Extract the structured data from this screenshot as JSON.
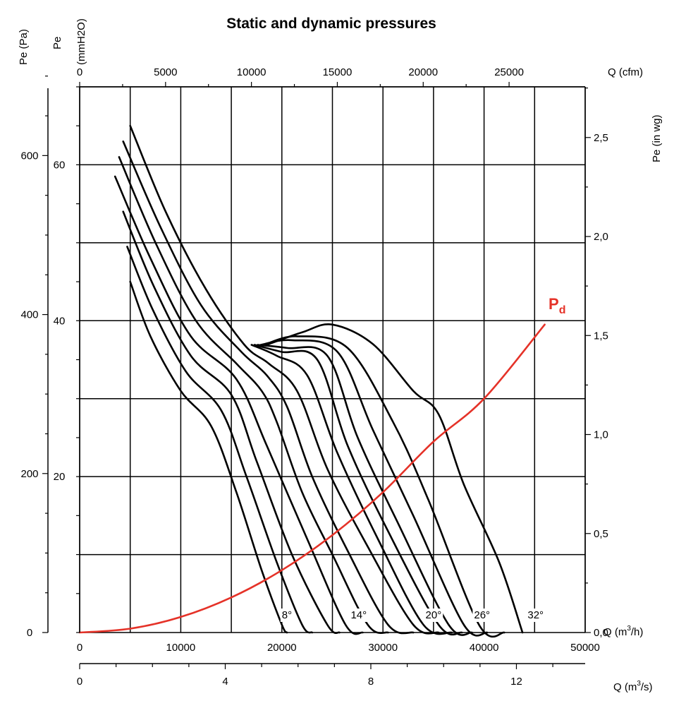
{
  "chart_data": {
    "type": "line",
    "title": "Static and dynamic pressures",
    "x_axis_bottom": {
      "label": "Q (m",
      "label_sup": "3",
      "label_end": "/h)",
      "range": [
        0,
        50000
      ],
      "ticks": [
        "0",
        "10000",
        "20000",
        "30000",
        "40000",
        "50000"
      ]
    },
    "x_axis_bottom2": {
      "label": "Q (m",
      "label_sup": "3",
      "label_end": "/s)",
      "ticks": [
        "0",
        "4",
        "8",
        "12"
      ],
      "tick_values": [
        0,
        4,
        8,
        12
      ]
    },
    "x_axis_top": {
      "label": "Q (cfm)",
      "ticks": [
        "0",
        "5000",
        "10000",
        "15000",
        "20000",
        "25000"
      ],
      "tick_values": [
        0,
        5000,
        10000,
        15000,
        20000,
        25000
      ]
    },
    "y_axis_pa": {
      "label": "Pe (Pa)",
      "ticks": [
        "0",
        "200",
        "400",
        "600"
      ],
      "tick_values": [
        0,
        200,
        400,
        600
      ]
    },
    "y_axis_mmh2o": {
      "label_line1": "Pe",
      "label_line2": "(mmH2O)",
      "range": [
        0,
        70
      ],
      "ticks": [
        "20",
        "40",
        "60"
      ],
      "tick_values": [
        20,
        40,
        60
      ]
    },
    "y_axis_inwg": {
      "label": "Pe (in wg)",
      "ticks": [
        "0,0",
        "0,5",
        "1,0",
        "1,5",
        "2,0",
        "2,5"
      ],
      "tick_values": [
        0,
        0.5,
        1.0,
        1.5,
        2.0,
        2.5
      ]
    },
    "grid": true,
    "series": [
      {
        "name": "8°",
        "x": [
          5000,
          7000,
          10000,
          13000,
          15500,
          18000,
          20000,
          20500
        ],
        "y": [
          45,
          38,
          31,
          26.5,
          18,
          8,
          1,
          0
        ]
      },
      {
        "name": "",
        "x": [
          4700,
          7200,
          10500,
          14000,
          16500,
          19500,
          22000,
          23000
        ],
        "y": [
          49.5,
          41.5,
          33.5,
          28.5,
          20,
          9,
          1,
          0
        ]
      },
      {
        "name": "",
        "x": [
          4300,
          7300,
          11000,
          15000,
          17500,
          21000,
          24500,
          25700
        ],
        "y": [
          54,
          44.5,
          35.5,
          30.5,
          22,
          10,
          1,
          0
        ]
      },
      {
        "name": "14°",
        "x": [
          3500,
          7000,
          11000,
          15500,
          18500,
          22500,
          26300,
          28000
        ],
        "y": [
          58.5,
          48,
          38,
          32.5,
          24,
          12,
          1,
          0
        ]
      },
      {
        "name": "",
        "x": [
          3900,
          7500,
          11500,
          15500,
          18000,
          19500,
          22000,
          25000,
          28500,
          30500
        ],
        "y": [
          61,
          50,
          40,
          34.5,
          31,
          27,
          18,
          10,
          1,
          0
        ]
      },
      {
        "name": "",
        "x": [
          4300,
          8000,
          12000,
          16000,
          18500,
          20500,
          23000,
          26500,
          30500,
          33000
        ],
        "y": [
          63,
          52,
          42,
          36,
          33,
          29,
          20,
          10.5,
          1,
          0
        ]
      },
      {
        "name": "20°",
        "x": [
          5000,
          8500,
          12500,
          16300,
          18700,
          21500,
          24500,
          28500,
          33000,
          35500
        ],
        "y": [
          65,
          54,
          44,
          36.9,
          34.5,
          31,
          21,
          11,
          1,
          0
        ]
      },
      {
        "name": "",
        "x": [
          17000,
          19500,
          22500,
          25500,
          29500,
          34000,
          36800
        ],
        "y": [
          36.9,
          35.5,
          33,
          23,
          12,
          1,
          0
        ]
      },
      {
        "name": "",
        "x": [
          17300,
          20000,
          23500,
          26500,
          30500,
          35500,
          37800
        ],
        "y": [
          36.9,
          36,
          35,
          24,
          13,
          1,
          0
        ]
      },
      {
        "name": "26°",
        "x": [
          17600,
          20500,
          24500,
          27500,
          31500,
          36500,
          38800
        ],
        "y": [
          36.9,
          36.5,
          35.5,
          25,
          14,
          1,
          0
        ]
      },
      {
        "name": "",
        "x": [
          17900,
          21000,
          25500,
          29000,
          33000,
          38000,
          40300
        ],
        "y": [
          36.9,
          37.5,
          36,
          26,
          15,
          1,
          0
        ]
      },
      {
        "name": "",
        "x": [
          18200,
          21500,
          26500,
          31000,
          34500,
          39500,
          42000
        ],
        "y": [
          36.9,
          38,
          36.5,
          27,
          17,
          1,
          0
        ]
      },
      {
        "name": "32°",
        "x": [
          18500,
          22000,
          25000,
          29000,
          33000,
          35500,
          38000,
          41500,
          43800
        ],
        "y": [
          36.9,
          38.5,
          39.5,
          37,
          31,
          28,
          19,
          9,
          0
        ]
      },
      {
        "name": "Pd",
        "x": [
          0,
          5000,
          10000,
          15000,
          20000,
          25000,
          30000,
          35000,
          40000,
          46000
        ],
        "y": [
          0,
          0.5,
          2,
          4.5,
          8,
          12.5,
          18,
          24.5,
          30,
          39.5
        ]
      }
    ],
    "curve_labels": [
      {
        "text": "8°",
        "x": 20500
      },
      {
        "text": "14°",
        "x": 27600
      },
      {
        "text": "20°",
        "x": 35000
      },
      {
        "text": "26°",
        "x": 39800
      },
      {
        "text": "32°",
        "x": 45100
      }
    ],
    "pd_label_main": "P",
    "pd_label_sub": "d",
    "colors": {
      "curves": "#000000",
      "pd": "#e53228",
      "grid": "#000000"
    }
  }
}
